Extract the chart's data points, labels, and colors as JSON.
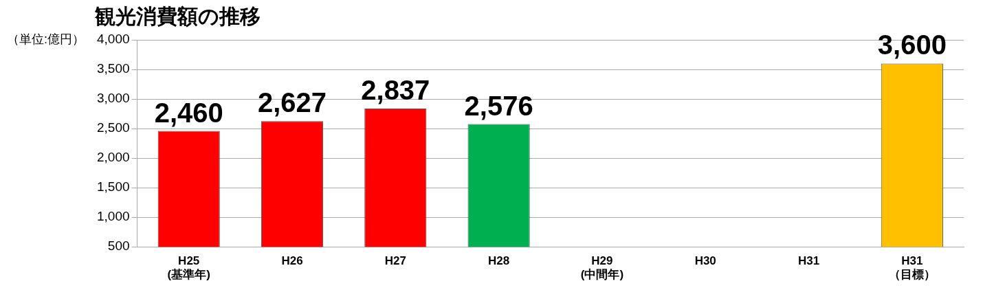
{
  "chart_data": {
    "type": "bar",
    "title": "観光消費額の推移",
    "ylabel": "（単位:億円）",
    "categories": [
      "H25\n(基準年)",
      "H26",
      "H27",
      "H28",
      "H29\n(中間年)",
      "H30",
      "H31",
      "H31\n（目標）"
    ],
    "values": [
      2460,
      2627,
      2837,
      2576,
      null,
      null,
      null,
      3600
    ],
    "colors": [
      "#ff0000",
      "#ff0000",
      "#ff0000",
      "#00b050",
      "#ffffff",
      "#ffffff",
      "#ffffff",
      "#ffc000"
    ],
    "value_labels": [
      "2,460",
      "2,627",
      "2,837",
      "2,576",
      null,
      null,
      null,
      "3,600"
    ],
    "ylim": [
      500,
      4000
    ],
    "yticks": [
      500,
      {
        "value": 1000,
        "label": "1,000"
      },
      {
        "value": 1500,
        "label": "1,500"
      },
      {
        "value": 2000,
        "label": "2,000"
      },
      {
        "value": 2500,
        "label": "2,500"
      },
      {
        "value": 3000,
        "label": "3,000"
      },
      {
        "value": 3500,
        "label": "3,500"
      },
      {
        "value": 4000,
        "label": "4,000"
      }
    ],
    "grid": "y",
    "legend": false
  }
}
